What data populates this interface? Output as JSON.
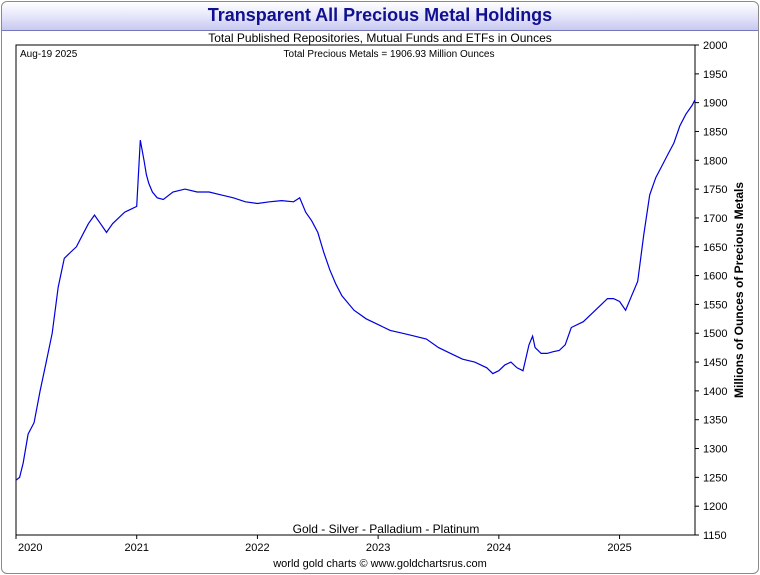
{
  "header": {
    "title": "Transparent All Precious Metal Holdings",
    "subtitle": "Total Published Repositories, Mutual Funds and ETFs in Ounces"
  },
  "annotations": {
    "date": "Aug-19  2025",
    "total": "Total Precious Metals = 1906.93 Million Ounces",
    "metals": "Gold - Silver - Palladium - Platinum"
  },
  "footer": {
    "credit": "world gold charts © www.goldchartsrus.com"
  },
  "colors": {
    "line": "#0000dd",
    "title_text": "#101090"
  },
  "chart_data": {
    "type": "line",
    "title": "Transparent All Precious Metal Holdings",
    "subtitle": "Total Published Repositories, Mutual Funds and ETFs in Ounces",
    "xlabel": "",
    "ylabel": "Millions of Ounces of Precious Metals",
    "ylim": [
      1150,
      2000
    ],
    "xlim": [
      2020.0,
      2025.625
    ],
    "y_axis_side": "right",
    "grid": false,
    "x_ticks": [
      "2020",
      "2021",
      "2022",
      "2023",
      "2024",
      "2025"
    ],
    "y_ticks": [
      1150,
      1200,
      1250,
      1300,
      1350,
      1400,
      1450,
      1500,
      1550,
      1600,
      1650,
      1700,
      1750,
      1800,
      1850,
      1900,
      1950,
      2000
    ],
    "series": [
      {
        "x": [
          2020.0,
          2020.03,
          2020.06,
          2020.1,
          2020.15,
          2020.2,
          2020.25,
          2020.3,
          2020.35,
          2020.4,
          2020.45,
          2020.5,
          2020.55,
          2020.6,
          2020.65,
          2020.7,
          2020.75,
          2020.8,
          2020.85,
          2020.9,
          2020.95,
          2021.0,
          2021.03,
          2021.06,
          2021.08,
          2021.1,
          2021.13,
          2021.17,
          2021.22,
          2021.3,
          2021.4,
          2021.5,
          2021.6,
          2021.7,
          2021.8,
          2021.9,
          2022.0,
          2022.1,
          2022.2,
          2022.3,
          2022.35,
          2022.4,
          2022.45,
          2022.5,
          2022.55,
          2022.6,
          2022.65,
          2022.7,
          2022.8,
          2022.9,
          2023.0,
          2023.1,
          2023.2,
          2023.3,
          2023.4,
          2023.5,
          2023.6,
          2023.7,
          2023.8,
          2023.9,
          2023.95,
          2024.0,
          2024.05,
          2024.1,
          2024.15,
          2024.2,
          2024.25,
          2024.28,
          2024.3,
          2024.35,
          2024.4,
          2024.45,
          2024.5,
          2024.55,
          2024.6,
          2024.7,
          2024.8,
          2024.9,
          2024.95,
          2025.0,
          2025.05,
          2025.1,
          2025.15,
          2025.2,
          2025.25,
          2025.3,
          2025.35,
          2025.4,
          2025.45,
          2025.5,
          2025.55,
          2025.6,
          2025.625
        ],
        "values": [
          1245,
          1250,
          1275,
          1325,
          1345,
          1400,
          1450,
          1500,
          1580,
          1630,
          1640,
          1650,
          1670,
          1690,
          1705,
          1690,
          1675,
          1690,
          1700,
          1710,
          1715,
          1720,
          1835,
          1800,
          1775,
          1760,
          1745,
          1735,
          1732,
          1745,
          1750,
          1745,
          1745,
          1740,
          1735,
          1728,
          1725,
          1728,
          1730,
          1728,
          1735,
          1710,
          1695,
          1675,
          1640,
          1610,
          1585,
          1565,
          1540,
          1525,
          1515,
          1505,
          1500,
          1495,
          1490,
          1475,
          1465,
          1455,
          1450,
          1440,
          1430,
          1435,
          1445,
          1450,
          1440,
          1435,
          1480,
          1495,
          1475,
          1465,
          1465,
          1468,
          1470,
          1480,
          1510,
          1520,
          1540,
          1560,
          1560,
          1555,
          1540,
          1565,
          1590,
          1670,
          1740,
          1770,
          1790,
          1810,
          1830,
          1860,
          1880,
          1895,
          1905
        ]
      }
    ]
  }
}
